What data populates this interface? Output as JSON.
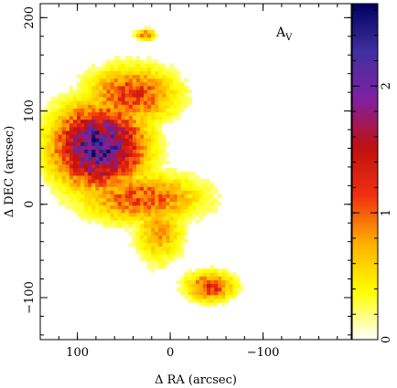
{
  "chart_data": {
    "type": "heatmap",
    "annotation": "A",
    "annotation_subscript": "V",
    "xlabel": "Δ RA (arcsec)",
    "ylabel": "Δ DEC (arcsec)",
    "xlim": [
      140,
      -195
    ],
    "ylim": [
      -145,
      215
    ],
    "x_ticks": [
      {
        "value": 100,
        "label": "100"
      },
      {
        "value": 0,
        "label": "0"
      },
      {
        "value": -100,
        "label": "−100"
      }
    ],
    "y_ticks": [
      {
        "value": 200,
        "label": "200"
      },
      {
        "value": 100,
        "label": "100"
      },
      {
        "value": 0,
        "label": "0"
      },
      {
        "value": -100,
        "label": "−100"
      }
    ],
    "colorbar": {
      "range": [
        0,
        2.65
      ],
      "ticks": [
        {
          "value": 0,
          "label": "0"
        },
        {
          "value": 1,
          "label": "1"
        },
        {
          "value": 2,
          "label": "2"
        }
      ],
      "colors": [
        "#ffffff",
        "#ffff00",
        "#ffb000",
        "#f03010",
        "#c01010",
        "#8020a0",
        "#4030a0",
        "#000060"
      ]
    },
    "regions": [
      {
        "name": "main-cloud",
        "cx": 75,
        "cy": 60,
        "rx": 55,
        "ry": 50,
        "peak": 2.3
      },
      {
        "name": "upper-arm",
        "cx": 40,
        "cy": 115,
        "rx": 55,
        "ry": 35,
        "peak": 1.2
      },
      {
        "name": "lower-ridge",
        "cx": 30,
        "cy": 5,
        "rx": 75,
        "ry": 30,
        "peak": 1.1
      },
      {
        "name": "east-stream",
        "cx": 10,
        "cy": -30,
        "rx": 30,
        "ry": 40,
        "peak": 0.8
      },
      {
        "name": "south-knot",
        "cx": -45,
        "cy": -90,
        "rx": 30,
        "ry": 18,
        "peak": 1.2
      },
      {
        "name": "north-spot",
        "cx": 25,
        "cy": 180,
        "rx": 12,
        "ry": 7,
        "peak": 1.0
      }
    ]
  }
}
